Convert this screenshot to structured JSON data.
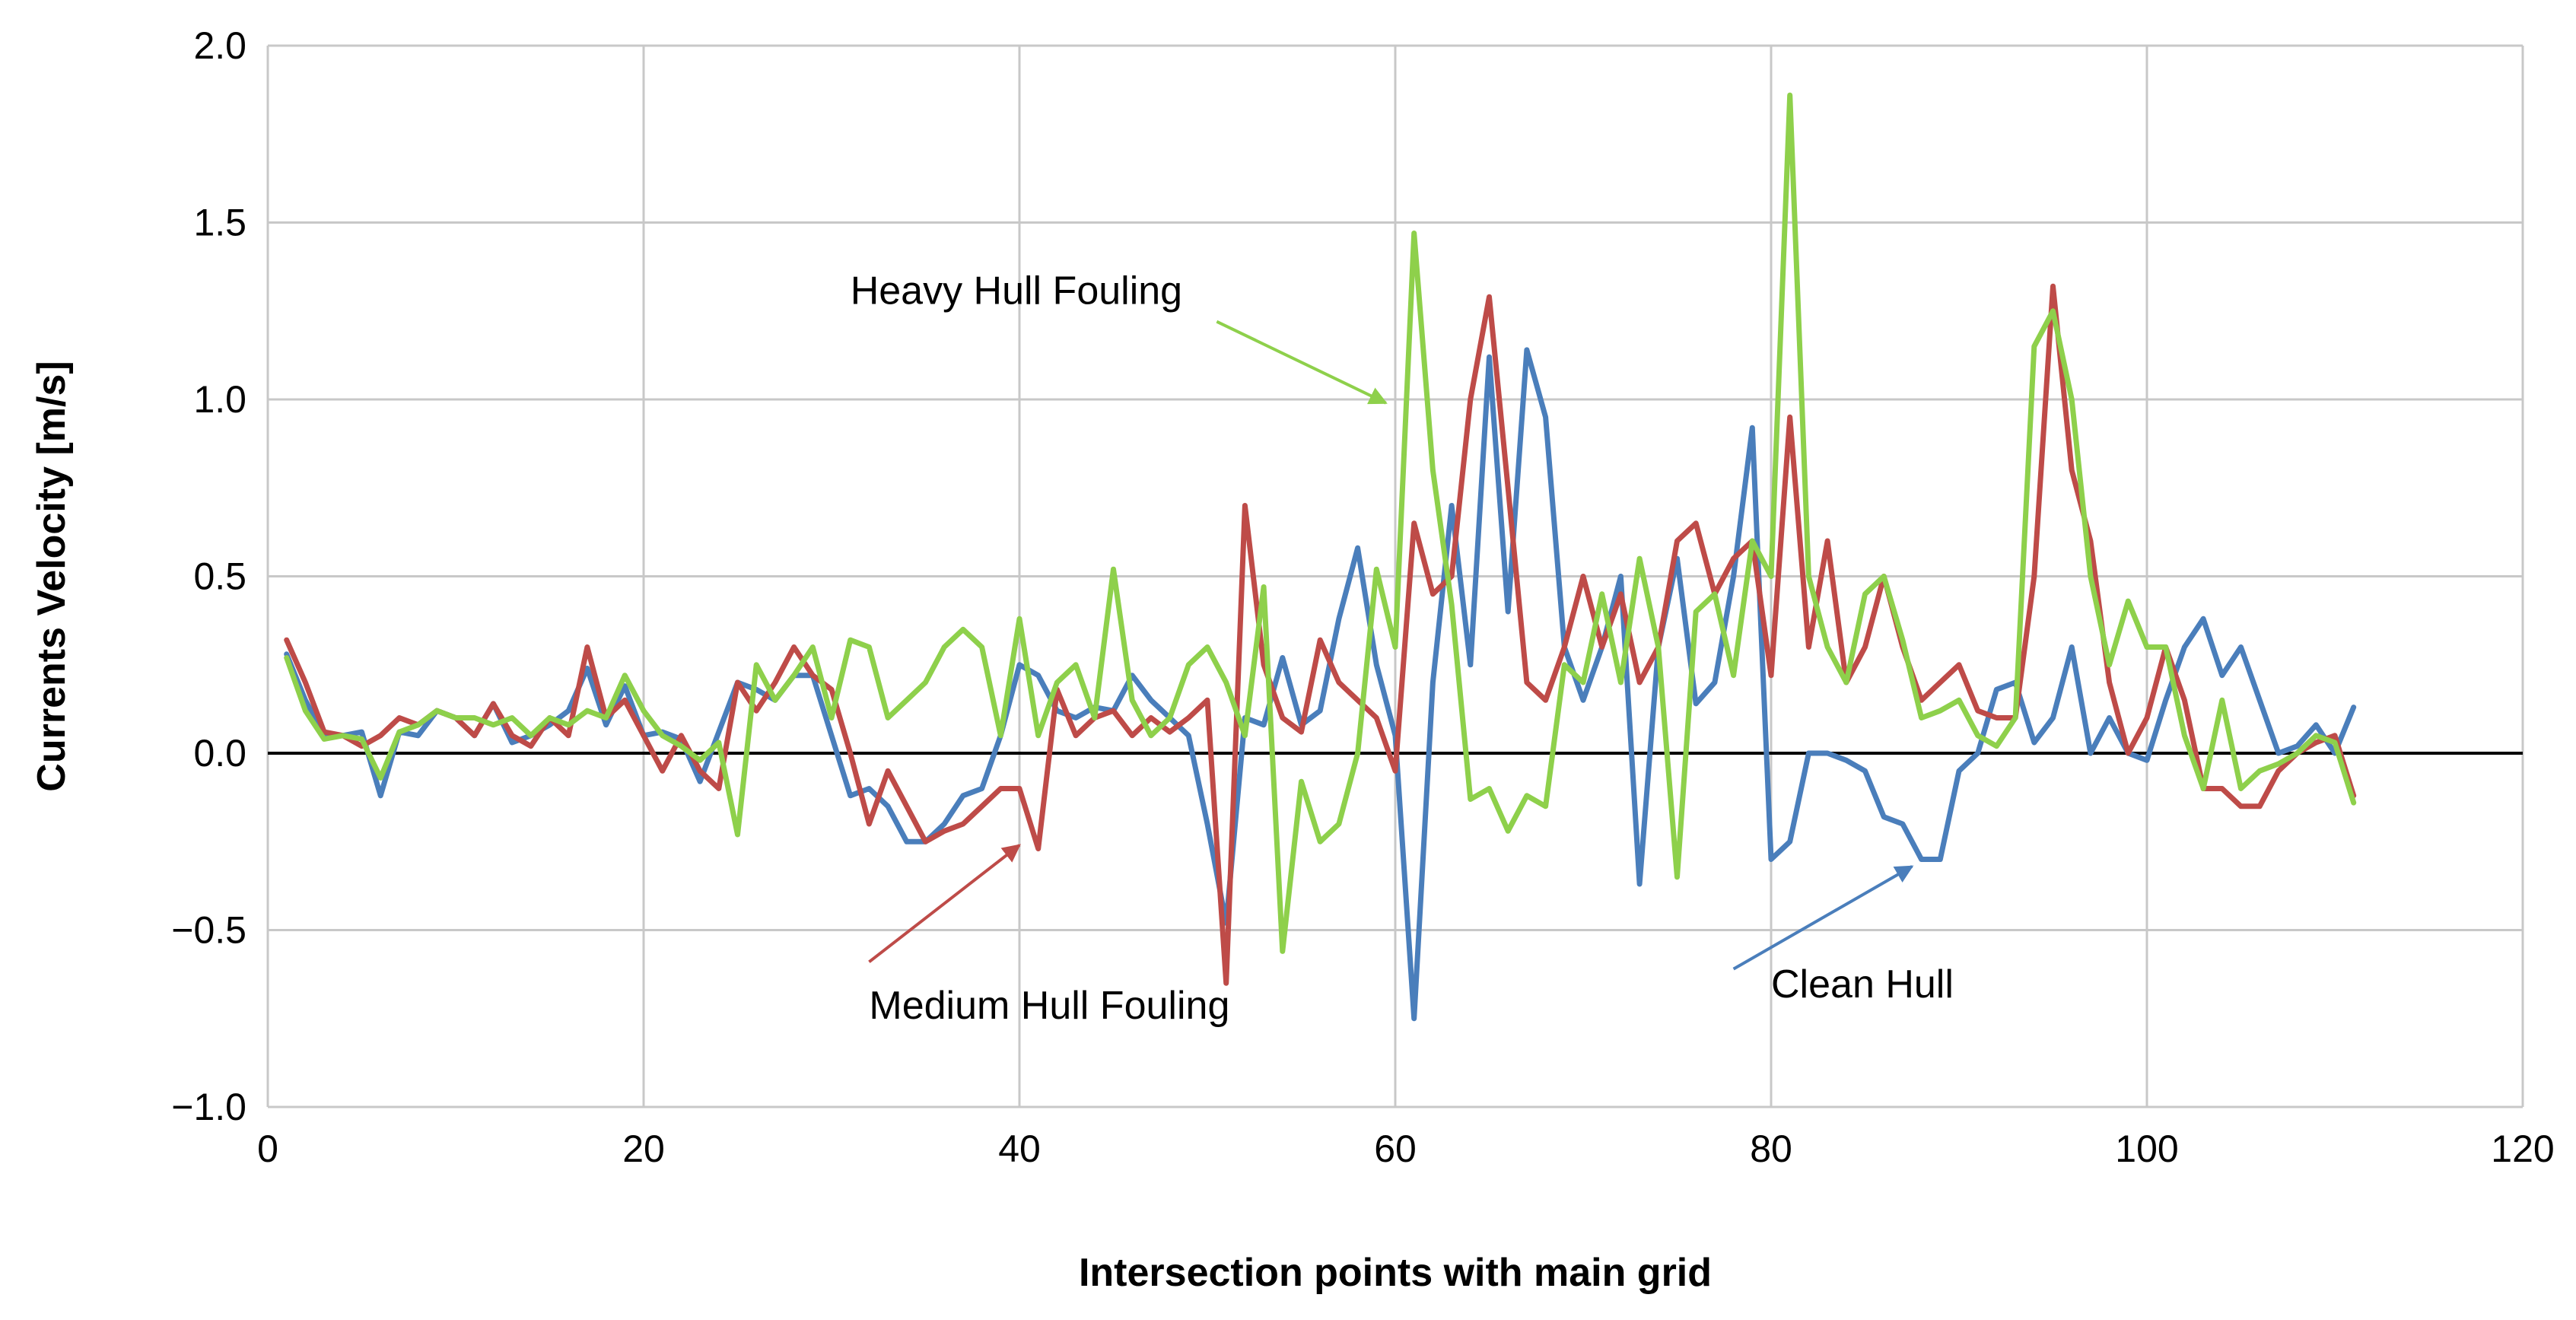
{
  "chart_data": {
    "type": "line",
    "title": "",
    "xlabel": "Intersection points with main grid",
    "ylabel": "Currents Velocity [m/s]",
    "xlim": [
      0,
      120
    ],
    "ylim": [
      -1.0,
      2.0
    ],
    "x_ticks": [
      0,
      20,
      40,
      60,
      80,
      100,
      120
    ],
    "x_tick_labels": [
      "0",
      "20",
      "40",
      "60",
      "80",
      "100",
      "120"
    ],
    "y_ticks": [
      -1.0,
      -0.5,
      0.0,
      0.5,
      1.0,
      1.5,
      2.0
    ],
    "y_tick_labels": [
      "−1.0",
      "−0.5",
      "0.0",
      "0.5",
      "1.0",
      "1.5",
      "2.0"
    ],
    "grid": true,
    "legend": "none",
    "series": [
      {
        "color": "#4a7ebb",
        "x": [
          1,
          2,
          3,
          4,
          5,
          6,
          7,
          8,
          9,
          10,
          11,
          12,
          13,
          14,
          15,
          16,
          17,
          18,
          19,
          20,
          21,
          22,
          23,
          24,
          25,
          26,
          27,
          28,
          29,
          30,
          31,
          32,
          33,
          34,
          35,
          36,
          37,
          38,
          39,
          40,
          41,
          42,
          43,
          44,
          45,
          46,
          47,
          48,
          49,
          50,
          51,
          52,
          53,
          54,
          55,
          56,
          57,
          58,
          59,
          60,
          61,
          62,
          63,
          64,
          65,
          66,
          67,
          68,
          69,
          70,
          71,
          72,
          73,
          74,
          75,
          76,
          77,
          78,
          79,
          80,
          81,
          82,
          83,
          84,
          85,
          86,
          87,
          88,
          89,
          90,
          91,
          92,
          93,
          94,
          95,
          96,
          97,
          98,
          99,
          100,
          101,
          102,
          103,
          104,
          105,
          106,
          107,
          108,
          109,
          110,
          111
        ],
        "values": [
          0.28,
          0.15,
          0.05,
          0.05,
          0.06,
          -0.12,
          0.06,
          0.05,
          0.12,
          0.1,
          0.05,
          0.14,
          0.03,
          0.05,
          0.08,
          0.12,
          0.24,
          0.08,
          0.19,
          0.05,
          0.06,
          0.04,
          -0.08,
          0.06,
          0.2,
          0.18,
          0.15,
          0.22,
          0.22,
          0.05,
          -0.12,
          -0.1,
          -0.15,
          -0.25,
          -0.25,
          -0.2,
          -0.12,
          -0.1,
          0.05,
          0.25,
          0.22,
          0.12,
          0.1,
          0.13,
          0.12,
          0.22,
          0.15,
          0.1,
          0.05,
          -0.2,
          -0.48,
          0.1,
          0.08,
          0.27,
          0.08,
          0.12,
          0.38,
          0.58,
          0.25,
          0.05,
          -0.75,
          0.2,
          0.7,
          0.25,
          1.12,
          0.4,
          1.14,
          0.95,
          0.3,
          0.15,
          0.3,
          0.5,
          -0.37,
          0.3,
          0.55,
          0.14,
          0.2,
          0.5,
          0.92,
          -0.3,
          -0.25,
          0.0,
          0.0,
          -0.02,
          -0.05,
          -0.18,
          -0.2,
          -0.3,
          -0.3,
          -0.05,
          0.0,
          0.18,
          0.2,
          0.03,
          0.1,
          0.3,
          0.0,
          0.1,
          0.0,
          -0.02,
          0.15,
          0.3,
          0.38,
          0.22,
          0.3,
          0.15,
          0.0,
          0.02,
          0.08,
          0.0,
          0.13
        ]
      },
      {
        "color": "#be4b48",
        "x": [
          1,
          2,
          3,
          4,
          5,
          6,
          7,
          8,
          9,
          10,
          11,
          12,
          13,
          14,
          15,
          16,
          17,
          18,
          19,
          20,
          21,
          22,
          23,
          24,
          25,
          26,
          27,
          28,
          29,
          30,
          31,
          32,
          33,
          34,
          35,
          36,
          37,
          38,
          39,
          40,
          41,
          42,
          43,
          44,
          45,
          46,
          47,
          48,
          49,
          50,
          51,
          52,
          53,
          54,
          55,
          56,
          57,
          58,
          59,
          60,
          61,
          62,
          63,
          64,
          65,
          66,
          67,
          68,
          69,
          70,
          71,
          72,
          73,
          74,
          75,
          76,
          77,
          78,
          79,
          80,
          81,
          82,
          83,
          84,
          85,
          86,
          87,
          88,
          89,
          90,
          91,
          92,
          93,
          94,
          95,
          96,
          97,
          98,
          99,
          100,
          101,
          102,
          103,
          104,
          105,
          106,
          107,
          108,
          109,
          110,
          111
        ],
        "values": [
          0.32,
          0.2,
          0.06,
          0.05,
          0.02,
          0.05,
          0.1,
          0.08,
          0.12,
          0.1,
          0.05,
          0.14,
          0.05,
          0.02,
          0.1,
          0.05,
          0.3,
          0.1,
          0.15,
          0.05,
          -0.05,
          0.05,
          -0.05,
          -0.1,
          0.2,
          0.12,
          0.2,
          0.3,
          0.22,
          0.18,
          0.0,
          -0.2,
          -0.05,
          -0.15,
          -0.25,
          -0.22,
          -0.2,
          -0.15,
          -0.1,
          -0.1,
          -0.27,
          0.18,
          0.05,
          0.1,
          0.12,
          0.05,
          0.1,
          0.06,
          0.1,
          0.15,
          -0.65,
          0.7,
          0.25,
          0.1,
          0.06,
          0.32,
          0.2,
          0.15,
          0.1,
          -0.05,
          0.65,
          0.45,
          0.5,
          1.0,
          1.29,
          0.75,
          0.2,
          0.15,
          0.3,
          0.5,
          0.3,
          0.45,
          0.2,
          0.3,
          0.6,
          0.65,
          0.45,
          0.55,
          0.6,
          0.22,
          0.95,
          0.3,
          0.6,
          0.2,
          0.3,
          0.5,
          0.3,
          0.15,
          0.2,
          0.25,
          0.12,
          0.1,
          0.1,
          0.5,
          1.32,
          0.8,
          0.6,
          0.2,
          0.0,
          0.1,
          0.3,
          0.15,
          -0.1,
          -0.1,
          -0.15,
          -0.15,
          -0.05,
          0.0,
          0.03,
          0.05,
          -0.12
        ]
      },
      {
        "color": "#8ed04b",
        "x": [
          1,
          2,
          3,
          4,
          5,
          6,
          7,
          8,
          9,
          10,
          11,
          12,
          13,
          14,
          15,
          16,
          17,
          18,
          19,
          20,
          21,
          22,
          23,
          24,
          25,
          26,
          27,
          28,
          29,
          30,
          31,
          32,
          33,
          34,
          35,
          36,
          37,
          38,
          39,
          40,
          41,
          42,
          43,
          44,
          45,
          46,
          47,
          48,
          49,
          50,
          51,
          52,
          53,
          54,
          55,
          56,
          57,
          58,
          59,
          60,
          61,
          62,
          63,
          64,
          65,
          66,
          67,
          68,
          69,
          70,
          71,
          72,
          73,
          74,
          75,
          76,
          77,
          78,
          79,
          80,
          81,
          82,
          83,
          84,
          85,
          86,
          87,
          88,
          89,
          90,
          91,
          92,
          93,
          94,
          95,
          96,
          97,
          98,
          99,
          100,
          101,
          102,
          103,
          104,
          105,
          106,
          107,
          108,
          109,
          110,
          111
        ],
        "values": [
          0.27,
          0.12,
          0.04,
          0.05,
          0.04,
          -0.07,
          0.06,
          0.08,
          0.12,
          0.1,
          0.1,
          0.08,
          0.1,
          0.05,
          0.1,
          0.08,
          0.12,
          0.1,
          0.22,
          0.12,
          0.05,
          0.02,
          -0.02,
          0.03,
          -0.23,
          0.25,
          0.15,
          0.22,
          0.3,
          0.1,
          0.32,
          0.3,
          0.1,
          0.15,
          0.2,
          0.3,
          0.35,
          0.3,
          0.05,
          0.38,
          0.05,
          0.2,
          0.25,
          0.1,
          0.52,
          0.15,
          0.05,
          0.1,
          0.25,
          0.3,
          0.2,
          0.05,
          0.47,
          -0.56,
          -0.08,
          -0.25,
          -0.2,
          0.0,
          0.52,
          0.3,
          1.47,
          0.8,
          0.42,
          -0.13,
          -0.1,
          -0.22,
          -0.12,
          -0.15,
          0.25,
          0.2,
          0.45,
          0.2,
          0.55,
          0.3,
          -0.35,
          0.4,
          0.45,
          0.22,
          0.6,
          0.5,
          1.86,
          0.5,
          0.3,
          0.2,
          0.45,
          0.5,
          0.32,
          0.1,
          0.12,
          0.15,
          0.05,
          0.02,
          0.1,
          1.15,
          1.25,
          1.0,
          0.5,
          0.25,
          0.43,
          0.3,
          0.3,
          0.05,
          -0.1,
          0.15,
          -0.1,
          -0.05,
          -0.03,
          0.0,
          0.05,
          0.03,
          -0.14
        ]
      }
    ],
    "annotations": [
      {
        "text": "Heavy Hull Fouling",
        "color": "#8ed04b",
        "text_x": 31,
        "text_y": 1.27,
        "tail_x": 50.5,
        "tail_y": 1.22,
        "head_x": 59.5,
        "head_y": 0.99
      },
      {
        "text": "Medium Hull Fouling",
        "color": "#be4b48",
        "text_x": 32,
        "text_y": -0.75,
        "tail_x": 32,
        "tail_y": -0.59,
        "head_x": 40,
        "head_y": -0.26
      },
      {
        "text": "Clean Hull",
        "color": "#4a7ebb",
        "text_x": 80,
        "text_y": -0.69,
        "tail_x": 78,
        "tail_y": -0.61,
        "head_x": 87.5,
        "head_y": -0.32
      }
    ]
  }
}
